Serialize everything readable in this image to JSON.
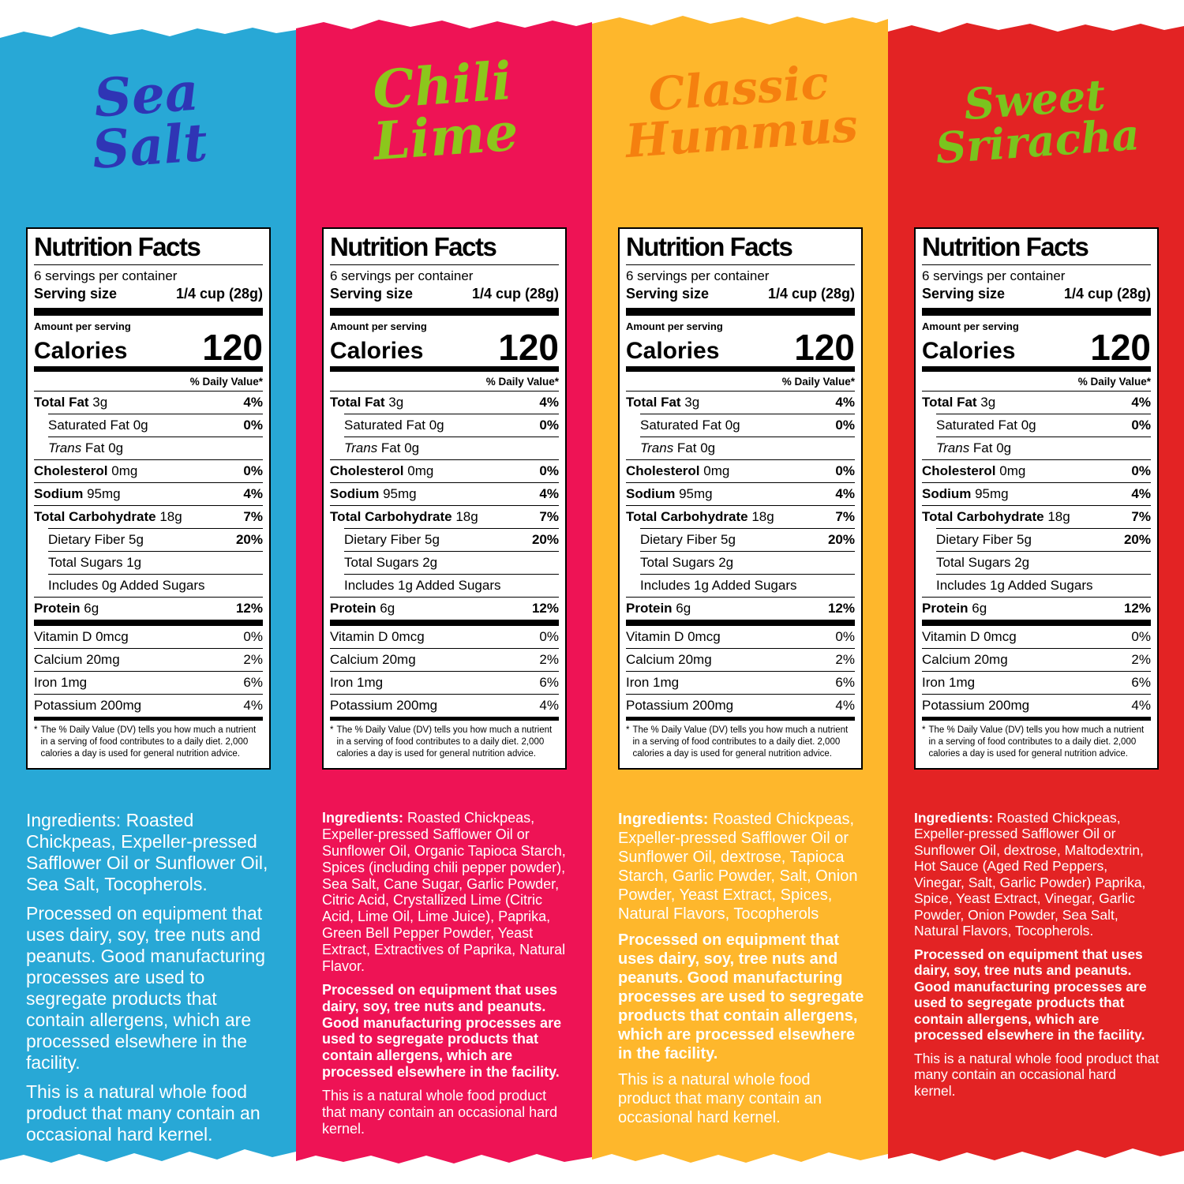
{
  "label": {
    "title": "Nutrition Facts",
    "servings_per_container": "6 servings per container",
    "serving_size_label": "Serving size",
    "serving_size_value": "1/4 cup (28g)",
    "amount_per_serving": "Amount per serving",
    "calories_label": "Calories",
    "calories_value": "120",
    "daily_value_header": "% Daily Value*",
    "footnote_marker": "*",
    "footnote": "The % Daily Value (DV) tells you how much a nutrient in a serving of food contributes to a daily diet. 2,000 calories a day is used for general nutrition advice."
  },
  "flavors": [
    {
      "name": "Sea Salt",
      "name_lines": [
        "Sea",
        "Salt"
      ],
      "bg_color": "#28A8D6",
      "title_color": "#2F35B5",
      "rows": [
        {
          "b": "Total Fat",
          "t": " 3g",
          "dv": "4%",
          "sb": true
        },
        {
          "t": "Saturated Fat 0g",
          "dv": "0%",
          "sb": true,
          "ind": true
        },
        {
          "it": "Trans",
          "t": " Fat 0g",
          "ind": true
        },
        {
          "b": "Cholesterol",
          "t": " 0mg",
          "dv": "0%",
          "sb": true
        },
        {
          "b": "Sodium",
          "t": " 95mg",
          "dv": "4%",
          "sb": true
        },
        {
          "b": "Total Carbohydrate",
          "t": " 18g",
          "dv": "7%",
          "sb": true
        },
        {
          "t": "Dietary Fiber 5g",
          "dv": "20%",
          "sb": true,
          "ind": true
        },
        {
          "t": "Total Sugars 1g",
          "ind": true
        },
        {
          "t": "Includes 0g Added Sugars",
          "ind": true
        },
        {
          "b": "Protein",
          "t": " 6g",
          "dv": "12%",
          "sb": true
        }
      ],
      "vitamins": [
        {
          "t": "Vitamin D 0mcg",
          "dv": "0%"
        },
        {
          "t": "Calcium 20mg",
          "dv": "2%"
        },
        {
          "t": "Iron 1mg",
          "dv": "6%"
        },
        {
          "t": "Potassium 200mg",
          "dv": "4%"
        }
      ],
      "ingredients_intro": "Ingredients:",
      "intro_bold": false,
      "ingredients_body": " Roasted Chickpeas, Expeller-pressed Safflower Oil or Sunflower Oil, Sea Salt, Tocopherols.",
      "allergen": "Processed on equipment that uses dairy, soy, tree nuts and peanuts. Good manufacturing processes are used to segregate products that contain allergens, which are processed elsewhere in the facility.",
      "allergen_bold": false,
      "kernel": "This is a natural whole food product that many contain an occasional hard kernel."
    },
    {
      "name": "Chili Lime",
      "name_lines": [
        "Chili",
        "Lime"
      ],
      "bg_color": "#EE1355",
      "title_color": "#8CC71C",
      "rows": [
        {
          "b": "Total Fat",
          "t": " 3g",
          "dv": "4%",
          "sb": true
        },
        {
          "t": "Saturated Fat 0g",
          "dv": "0%",
          "sb": true,
          "ind": true
        },
        {
          "it": "Trans",
          "t": " Fat 0g",
          "ind": true
        },
        {
          "b": "Cholesterol",
          "t": " 0mg",
          "dv": "0%",
          "sb": true
        },
        {
          "b": "Sodium",
          "t": " 95mg",
          "dv": "4%",
          "sb": true
        },
        {
          "b": "Total Carbohydrate",
          "t": " 18g",
          "dv": "7%",
          "sb": true
        },
        {
          "t": "Dietary Fiber 5g",
          "dv": "20%",
          "sb": true,
          "ind": true
        },
        {
          "t": "Total Sugars 2g",
          "ind": true
        },
        {
          "t": "Includes 1g Added Sugars",
          "ind": true
        },
        {
          "b": "Protein",
          "t": " 6g",
          "dv": "12%",
          "sb": true
        }
      ],
      "vitamins": [
        {
          "t": "Vitamin D 0mcg",
          "dv": "0%"
        },
        {
          "t": "Calcium 20mg",
          "dv": "2%"
        },
        {
          "t": "Iron 1mg",
          "dv": "6%"
        },
        {
          "t": "Potassium 200mg",
          "dv": "4%"
        }
      ],
      "ingredients_intro": "Ingredients:",
      "intro_bold": true,
      "ingredients_body": " Roasted Chickpeas, Expeller-pressed Safflower Oil or Sunflower Oil, Organic Tapioca Starch, Spices (including chili pepper powder), Sea Salt, Cane Sugar, Garlic Powder, Citric Acid, Crystallized Lime (Citric Acid, Lime Oil, Lime Juice), Paprika, Green Bell Pepper Powder, Yeast Extract, Extractives of Paprika, Natural Flavor.",
      "allergen": "Processed on equipment that uses dairy, soy, tree nuts and peanuts. Good manufacturing processes are used to segregate products that contain allergens, which are processed elsewhere in the facility.",
      "allergen_bold": true,
      "kernel": "This is a natural whole food product that many contain an occasional hard kernel."
    },
    {
      "name": "Classic Hummus",
      "name_lines": [
        "Classic",
        "Hummus"
      ],
      "bg_color": "#FEB72C",
      "title_color": "#F5800F",
      "rows": [
        {
          "b": "Total Fat",
          "t": " 3g",
          "dv": "4%",
          "sb": true
        },
        {
          "t": "Saturated Fat 0g",
          "dv": "0%",
          "sb": true,
          "ind": true
        },
        {
          "it": "Trans",
          "t": " Fat 0g",
          "ind": true
        },
        {
          "b": "Cholesterol",
          "t": " 0mg",
          "dv": "0%",
          "sb": true
        },
        {
          "b": "Sodium",
          "t": " 95mg",
          "dv": "4%",
          "sb": true
        },
        {
          "b": "Total Carbohydrate",
          "t": " 18g",
          "dv": "7%",
          "sb": true
        },
        {
          "t": "Dietary Fiber 5g",
          "dv": "20%",
          "sb": true,
          "ind": true
        },
        {
          "t": "Total Sugars 2g",
          "ind": true
        },
        {
          "t": "Includes 1g Added Sugars",
          "ind": true
        },
        {
          "b": "Protein",
          "t": " 6g",
          "dv": "12%",
          "sb": true
        }
      ],
      "vitamins": [
        {
          "t": "Vitamin D 0mcg",
          "dv": "0%"
        },
        {
          "t": "Calcium 20mg",
          "dv": "2%"
        },
        {
          "t": "Iron 1mg",
          "dv": "6%"
        },
        {
          "t": "Potassium 200mg",
          "dv": "4%"
        }
      ],
      "ingredients_intro": "Ingredients:",
      "intro_bold": true,
      "ingredients_body": " Roasted Chickpeas, Expeller-pressed Safflower Oil or Sunflower Oil, dextrose, Tapioca Starch, Garlic Powder, Salt, Onion Powder, Yeast Extract, Spices, Natural Flavors, Tocopherols",
      "allergen": "Processed on equipment that uses dairy, soy, tree nuts and peanuts. Good manufacturing processes are used to segregate products that contain allergens, which are processed elsewhere in the facility.",
      "allergen_bold": true,
      "kernel": "This is a natural whole food product that many contain an occasional hard kernel."
    },
    {
      "name": "Sweet Sriracha",
      "name_lines": [
        "Sweet",
        "Sriracha"
      ],
      "bg_color": "#E32324",
      "title_color": "#7AC41E",
      "rows": [
        {
          "b": "Total Fat",
          "t": " 3g",
          "dv": "4%",
          "sb": true
        },
        {
          "t": "Saturated Fat 0g",
          "dv": "0%",
          "sb": true,
          "ind": true
        },
        {
          "it": "Trans",
          "t": " Fat 0g",
          "ind": true
        },
        {
          "b": "Cholesterol",
          "t": " 0mg",
          "dv": "0%",
          "sb": true
        },
        {
          "b": "Sodium",
          "t": " 95mg",
          "dv": "4%",
          "sb": true
        },
        {
          "b": "Total Carbohydrate",
          "t": " 18g",
          "dv": "7%",
          "sb": true
        },
        {
          "t": "Dietary Fiber 5g",
          "dv": "20%",
          "sb": true,
          "ind": true
        },
        {
          "t": "Total Sugars 2g",
          "ind": true
        },
        {
          "t": "Includes 1g Added Sugars",
          "ind": true
        },
        {
          "b": "Protein",
          "t": " 6g",
          "dv": "12%",
          "sb": true
        }
      ],
      "vitamins": [
        {
          "t": "Vitamin D 0mcg",
          "dv": "0%"
        },
        {
          "t": "Calcium 20mg",
          "dv": "2%"
        },
        {
          "t": "Iron 1mg",
          "dv": "6%"
        },
        {
          "t": "Potassium 200mg",
          "dv": "4%"
        }
      ],
      "ingredients_intro": "Ingredients:",
      "intro_bold": true,
      "ingredients_body": " Roasted Chickpeas, Expeller-pressed Safflower Oil or Sunflower Oil, dextrose, Maltodextrin, Hot Sauce (Aged Red Peppers, Vinegar, Salt, Garlic Powder) Paprika, Spice, Yeast Extract, Vinegar, Garlic Powder, Onion Powder, Sea Salt, Natural Flavors, Tocopherols.",
      "allergen": "Processed on equipment that uses dairy, soy, tree nuts and peanuts. Good manufacturing processes are used to segregate products that contain allergens, which are processed elsewhere in the facility.",
      "allergen_bold": true,
      "kernel": "This is a natural whole food product that many contain an occasional hard kernel."
    }
  ]
}
